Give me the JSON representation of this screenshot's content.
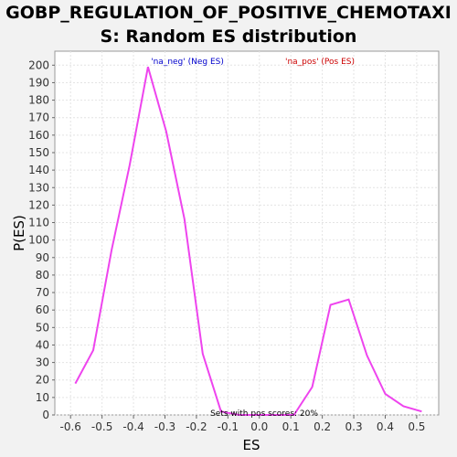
{
  "chart_data": {
    "type": "line",
    "title_lines": [
      "GOBP_REGULATION_OF_POSITIVE_CHEMOTAXI",
      "S: Random ES distribution"
    ],
    "xlabel": "ES",
    "ylabel": "P(ES)",
    "xlim": [
      -0.65,
      0.57
    ],
    "ylim": [
      0,
      208
    ],
    "x_ticks": [
      -0.6,
      -0.5,
      -0.4,
      -0.3,
      -0.2,
      -0.1,
      0.0,
      0.1,
      0.2,
      0.3,
      0.4,
      0.5
    ],
    "x_tick_labels": [
      "-0.6",
      "-0.5",
      "-0.4",
      "-0.3",
      "-0.2",
      "-0.1",
      "0.0",
      "0.1",
      "0.2",
      "0.3",
      "0.4",
      "0.5"
    ],
    "y_ticks": [
      0,
      10,
      20,
      30,
      40,
      50,
      60,
      70,
      80,
      90,
      100,
      110,
      120,
      130,
      140,
      150,
      160,
      170,
      180,
      190,
      200
    ],
    "grid": true,
    "line_color": "#ee44ee",
    "series": [
      {
        "name": "",
        "x": [
          -0.585,
          -0.528,
          -0.47,
          -0.412,
          -0.354,
          -0.296,
          -0.238,
          -0.18,
          -0.122,
          -0.064,
          -0.006,
          0.052,
          0.11,
          0.168,
          0.226,
          0.284,
          0.342,
          0.4,
          0.458,
          0.516
        ],
        "values": [
          18,
          37,
          94,
          143,
          199,
          162,
          112,
          35,
          2,
          0,
          0,
          0,
          0,
          16,
          63,
          66,
          34,
          12,
          5,
          2
        ]
      }
    ],
    "legend": [
      {
        "label": "'na_neg' (Neg ES)",
        "color": "#0000cc"
      },
      {
        "label": "'na_pos' (Pos ES)",
        "color": "#cc0000"
      }
    ],
    "annotation": "Sets with pos scores: 20%"
  }
}
